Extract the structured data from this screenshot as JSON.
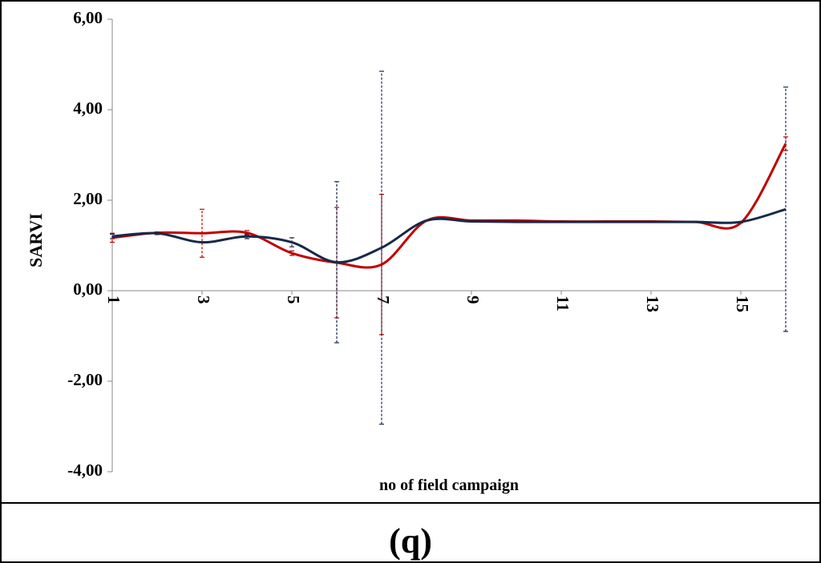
{
  "caption": "(q)",
  "chart_data": {
    "type": "line",
    "x_label": "no of field campaign",
    "y_label": "SARVI",
    "x": [
      1,
      2,
      3,
      4,
      5,
      6,
      7,
      8,
      9,
      10,
      11,
      12,
      13,
      14,
      15,
      16
    ],
    "xlim": [
      1,
      16
    ],
    "xticks": [
      1,
      3,
      5,
      7,
      9,
      11,
      13,
      15
    ],
    "ylim": [
      -4,
      6
    ],
    "yticks": [
      {
        "value": -4,
        "label": "-4,00"
      },
      {
        "value": -2,
        "label": "-2,00"
      },
      {
        "value": 0,
        "label": "0,00"
      },
      {
        "value": 2,
        "label": "2,00"
      },
      {
        "value": 4,
        "label": "4,00"
      },
      {
        "value": 6,
        "label": "6,00"
      }
    ],
    "series": [
      {
        "color": "#c00000",
        "values": [
          1.17,
          1.28,
          1.27,
          1.28,
          0.83,
          0.62,
          0.58,
          1.55,
          1.55,
          1.55,
          1.53,
          1.53,
          1.53,
          1.52,
          1.5,
          3.25
        ],
        "errors": [
          0.1,
          0,
          0.53,
          0.05,
          0.05,
          1.22,
          1.55,
          0,
          0,
          0,
          0,
          0,
          0,
          0,
          0,
          0.15
        ]
      },
      {
        "color": "#17294a",
        "values": [
          1.2,
          1.27,
          1.07,
          1.2,
          1.07,
          0.63,
          0.95,
          1.55,
          1.53,
          1.52,
          1.52,
          1.52,
          1.52,
          1.52,
          1.52,
          1.8
        ],
        "errors": [
          0.05,
          0.03,
          0,
          0.05,
          0.1,
          1.78,
          3.9,
          0,
          0,
          0,
          0,
          0,
          0,
          0,
          0,
          2.7
        ]
      }
    ]
  }
}
